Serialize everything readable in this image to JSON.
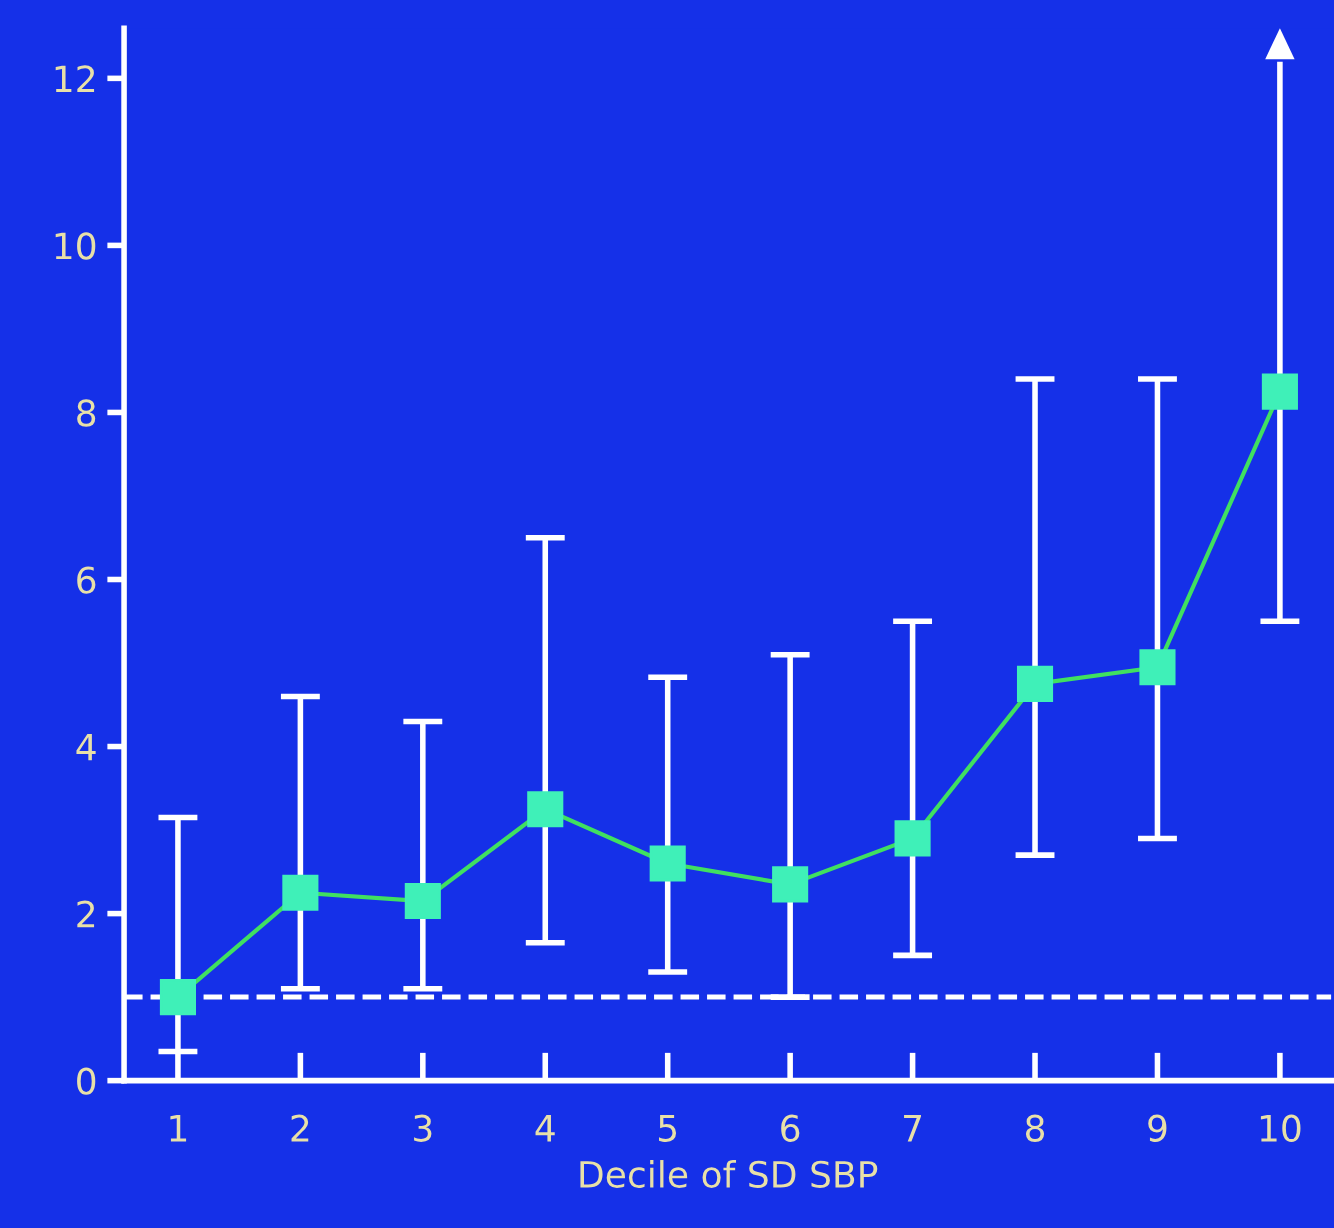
{
  "chart_data": {
    "type": "line",
    "xlabel": "Decile of SD SBP",
    "categories": [
      "1",
      "2",
      "3",
      "4",
      "5",
      "6",
      "7",
      "8",
      "9",
      "10"
    ],
    "series": [
      {
        "color": "#3ff0b8",
        "values": [
          1.0,
          2.25,
          2.15,
          3.25,
          2.6,
          2.35,
          2.9,
          4.75,
          4.95,
          8.25
        ],
        "errors": [
          [
            0.35,
            3.15
          ],
          [
            1.1,
            4.6
          ],
          [
            1.1,
            4.3
          ],
          [
            1.65,
            6.5
          ],
          [
            1.3,
            4.83
          ],
          [
            1.0,
            5.1
          ],
          [
            1.5,
            5.5
          ],
          [
            2.7,
            8.4
          ],
          [
            2.9,
            8.4
          ],
          [
            5.5,
            12.2
          ]
        ]
      }
    ],
    "marker": "square",
    "line_style": "solid",
    "grid": false,
    "legend": false,
    "ylim": [
      0,
      12.6
    ],
    "yticks": [
      0,
      2,
      4,
      6,
      8,
      10,
      12
    ],
    "ref_lines": [
      {
        "axis": "y",
        "value": 1,
        "color": "#ffffff",
        "line_style": "dashed"
      }
    ]
  }
}
